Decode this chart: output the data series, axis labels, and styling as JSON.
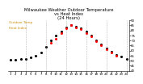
{
  "title": "Milwaukee Weather Outdoor Temperature\nvs Heat Index\n(24 Hours)",
  "legend_temp": "Outdoor Temp",
  "legend_heat": "Heat Index",
  "hours": [
    1,
    2,
    3,
    4,
    5,
    6,
    7,
    8,
    9,
    10,
    11,
    12,
    13,
    14,
    15,
    16,
    17,
    18,
    19,
    20,
    21,
    22,
    23,
    24
  ],
  "temp_values": [
    51,
    51,
    52,
    52,
    53,
    55,
    58,
    64,
    70,
    75,
    79,
    83,
    85,
    84,
    82,
    79,
    75,
    70,
    66,
    62,
    59,
    56,
    54,
    52
  ],
  "heat_values": [
    null,
    null,
    null,
    null,
    null,
    null,
    null,
    null,
    68,
    72,
    77,
    82,
    85,
    83,
    81,
    77,
    74,
    69,
    65,
    61,
    58,
    55,
    null,
    null
  ],
  "ylim": [
    40,
    90
  ],
  "ytick_values": [
    40,
    45,
    50,
    55,
    60,
    65,
    70,
    75,
    80,
    85,
    90
  ],
  "ytick_labels": [
    "40",
    "45",
    "50",
    "55",
    "60",
    "65",
    "70",
    "75",
    "80",
    "85",
    "90"
  ],
  "xtick_hours": [
    1,
    2,
    3,
    4,
    5,
    6,
    7,
    8,
    9,
    10,
    11,
    12,
    13,
    14,
    15,
    16,
    17,
    18,
    19,
    20,
    21,
    22,
    23,
    24
  ],
  "xtick_labels": [
    "1",
    "2",
    "3",
    "4",
    "5",
    "6",
    "7",
    "8",
    "9",
    "10",
    "11",
    "12",
    "13",
    "14",
    "15",
    "16",
    "17",
    "18",
    "19",
    "20",
    "21",
    "22",
    "23",
    "24"
  ],
  "vgrid_hours": [
    4,
    8,
    12,
    16,
    20,
    24
  ],
  "temp_color": "#000000",
  "heat_color": "#ff0000",
  "title_color": "#000000",
  "legend_color": "#cc8800",
  "grid_color": "#888888",
  "bg_color": "#ffffff",
  "title_fontsize": 3.8,
  "legend_fontsize": 3.0,
  "tick_fontsize": 2.8,
  "marker_size": 1.2
}
